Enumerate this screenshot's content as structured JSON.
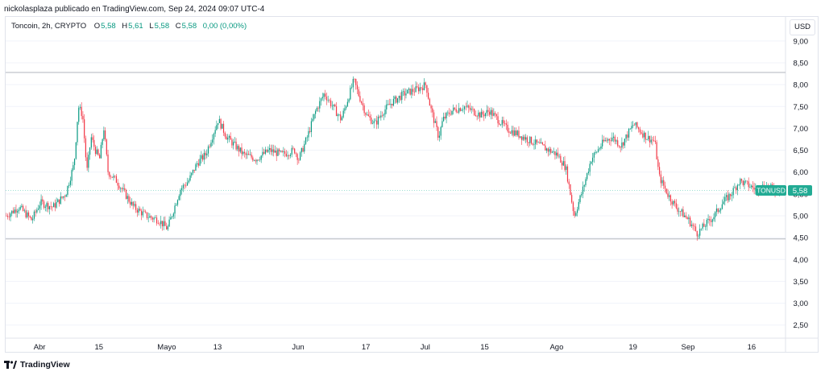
{
  "header": {
    "publish_line": "nickolasplaza publicado en TradingView.com, Sep 24, 2024 09:07 UTC-4"
  },
  "legend": {
    "symbol": "Toncoin, 2h, CRYPTO",
    "o_label": "O",
    "o_value": "5,58",
    "h_label": "H",
    "h_value": "5,61",
    "l_label": "L",
    "l_value": "5,58",
    "c_label": "C",
    "c_value": "5,58",
    "change": "0,00 (0,00%)"
  },
  "currency_button": "USD",
  "price_tag": {
    "symbol": "TONUSD",
    "value": "5,58"
  },
  "footer": {
    "brand": "TradingView"
  },
  "colors": {
    "up": "#089981",
    "down": "#f23645",
    "tag": "#22ab94"
  },
  "chart_data": {
    "type": "line",
    "style": "candlestick",
    "ylim": [
      2.2,
      9.55
    ],
    "y_ticks": [
      2.5,
      3.0,
      3.5,
      4.0,
      4.5,
      5.0,
      5.5,
      6.0,
      6.5,
      7.0,
      7.5,
      8.0,
      8.5,
      9.0
    ],
    "y_tick_labels": [
      "2,50",
      "3,00",
      "3,50",
      "4,00",
      "4,50",
      "5,00",
      "5,50",
      "6,00",
      "6,50",
      "7,00",
      "7,50",
      "8,00",
      "8,50",
      "9,00"
    ],
    "x_tick_labels": [
      "Abr",
      "15",
      "Mayo",
      "13",
      "Jun",
      "17",
      "Jul",
      "15",
      "Ago",
      "19",
      "Sep",
      "16"
    ],
    "horizontal_lines": [
      8.28,
      5.58,
      4.47
    ],
    "last_price": 5.58,
    "x_range": [
      "2024-03-24",
      "2024-09-24"
    ],
    "series": [
      {
        "x": [
          "2024-03-24",
          "2024-03-27",
          "2024-03-30",
          "2024-04-01",
          "2024-04-04",
          "2024-04-07",
          "2024-04-09",
          "2024-04-10",
          "2024-04-11",
          "2024-04-12",
          "2024-04-13",
          "2024-04-14",
          "2024-04-15",
          "2024-04-16",
          "2024-04-17",
          "2024-04-19",
          "2024-04-21",
          "2024-04-23",
          "2024-04-26",
          "2024-04-29",
          "2024-05-01",
          "2024-05-02",
          "2024-05-04",
          "2024-05-06",
          "2024-05-08",
          "2024-05-10",
          "2024-05-13",
          "2024-05-15",
          "2024-05-17",
          "2024-05-19",
          "2024-05-22",
          "2024-05-25",
          "2024-05-28",
          "2024-05-31",
          "2024-06-01",
          "2024-06-03",
          "2024-06-05",
          "2024-06-07",
          "2024-06-09",
          "2024-06-11",
          "2024-06-13",
          "2024-06-14",
          "2024-06-15",
          "2024-06-17",
          "2024-06-19",
          "2024-06-21",
          "2024-06-23",
          "2024-06-26",
          "2024-06-29",
          "2024-07-01",
          "2024-07-02",
          "2024-07-04",
          "2024-07-05",
          "2024-07-07",
          "2024-07-10",
          "2024-07-14",
          "2024-07-16",
          "2024-07-20",
          "2024-07-24",
          "2024-07-28",
          "2024-08-01",
          "2024-08-03",
          "2024-08-05",
          "2024-08-07",
          "2024-08-09",
          "2024-08-12",
          "2024-08-14",
          "2024-08-16",
          "2024-08-19",
          "2024-08-22",
          "2024-08-24",
          "2024-08-25",
          "2024-08-27",
          "2024-08-29",
          "2024-09-01",
          "2024-09-03",
          "2024-09-05",
          "2024-09-07",
          "2024-09-09",
          "2024-09-11",
          "2024-09-13",
          "2024-09-15",
          "2024-09-17",
          "2024-09-19",
          "2024-09-21",
          "2024-09-24"
        ],
        "y": [
          5.0,
          5.2,
          4.9,
          5.3,
          5.2,
          5.5,
          6.2,
          7.5,
          7.3,
          6.0,
          6.8,
          6.5,
          6.3,
          7.0,
          6.0,
          5.8,
          5.5,
          5.2,
          5.0,
          4.9,
          4.7,
          5.0,
          5.6,
          5.8,
          6.2,
          6.4,
          7.2,
          6.8,
          6.6,
          6.4,
          6.3,
          6.5,
          6.4,
          6.5,
          6.3,
          6.8,
          7.4,
          7.8,
          7.5,
          7.2,
          7.8,
          8.1,
          7.8,
          7.3,
          7.1,
          7.4,
          7.6,
          7.8,
          7.9,
          8.0,
          7.5,
          6.8,
          7.2,
          7.4,
          7.5,
          7.3,
          7.4,
          7.0,
          6.8,
          6.6,
          6.4,
          6.1,
          5.0,
          5.6,
          6.3,
          6.7,
          6.8,
          6.6,
          7.1,
          6.8,
          6.7,
          5.9,
          5.5,
          5.2,
          4.9,
          4.6,
          4.8,
          5.0,
          5.3,
          5.5,
          5.8,
          5.7,
          5.6,
          5.7,
          5.6,
          5.58
        ]
      }
    ]
  }
}
